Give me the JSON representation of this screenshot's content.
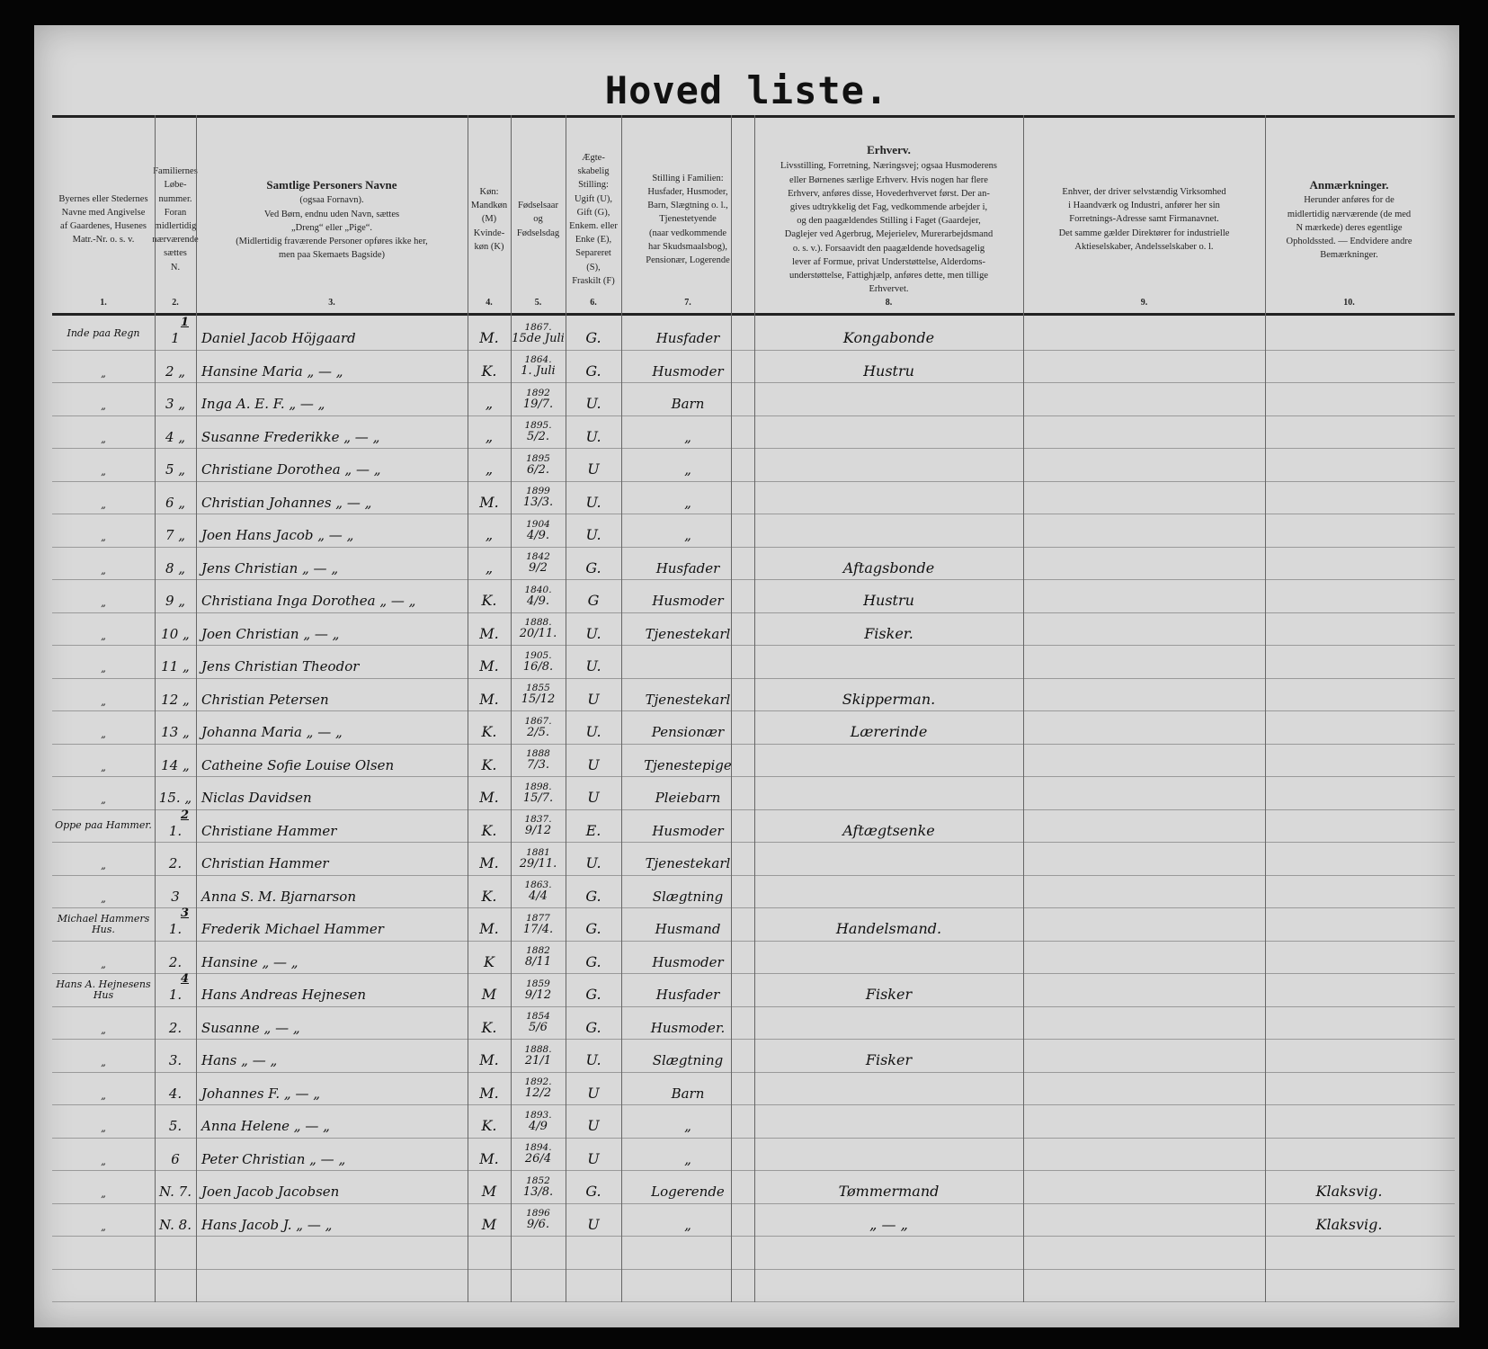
{
  "title": "Hoved liste.",
  "headers": [
    {
      "num": "1.",
      "lines": [
        "Byernes eller Stedernes",
        "Navne med Angivelse",
        "af Gaardenes, Husenes",
        "Matr.-Nr. o. s. v."
      ]
    },
    {
      "num": "2.",
      "lines": [
        "Familiernes",
        "Løbe-",
        "nummer.",
        "Foran",
        "midlertidig",
        "nærværende",
        "sættes N."
      ]
    },
    {
      "num": "3.",
      "title": "Samtlige Personers Navne",
      "lines": [
        "(ogsaa Fornavn).",
        "Ved Børn, endnu uden Navn, sættes",
        "„Dreng“ eller „Pige“.",
        "(Midlertidig fraværende Personer opføres ikke her,",
        "men paa Skemaets Bagside)"
      ]
    },
    {
      "num": "4.",
      "lines": [
        "Køn:",
        "Mandkøn",
        "(M)",
        "Kvinde-",
        "køn (K)"
      ]
    },
    {
      "num": "5.",
      "lines": [
        "Fødselsaar",
        "og",
        "Fødselsdag"
      ]
    },
    {
      "num": "6.",
      "lines": [
        "Ægte-",
        "skabelig",
        "Stilling:",
        "Ugift (U),",
        "Gift (G),",
        "Enkem. eller",
        "Enke (E),",
        "Separeret",
        "(S),",
        "Fraskilt (F)"
      ]
    },
    {
      "num": "7.",
      "lines": [
        "Stilling i Familien:",
        "Husfader, Husmoder,",
        "Barn, Slægtning o. l.,",
        "Tjenestetyende",
        "(naar vedkommende",
        "har Skudsmaalsbog),",
        "Pensionær, Logerende"
      ]
    },
    {
      "num": "8.",
      "title": "Erhverv.",
      "lines": [
        "Livsstilling, Forretning, Næringsvej; ogsaa Husmoderens",
        "eller Børnenes særlige Erhverv. Hvis nogen har flere",
        "Erhverv, anføres disse, Hovederhvervet først. Der an-",
        "gives udtrykkelig det Fag, vedkommende arbejder i,",
        "og den paagældendes Stilling i Faget (Gaardejer,",
        "Daglejer ved Agerbrug, Mejerielev, Murerarbejdsmand",
        "o. s. v.). Forsaavidt den paagældende hovedsagelig",
        "lever af Formue, privat Understøttelse, Alderdoms-",
        "understøttelse, Fattighjælp, anføres dette, men tillige",
        "Erhvervet."
      ]
    },
    {
      "num": "9.",
      "lines": [
        "Enhver, der driver selvstændig Virksomhed",
        "i Haandværk og Industri, anfører her sin",
        "Forretnings-Adresse samt Firmanavnet.",
        "Det samme gælder Direktører for industrielle",
        "Aktieselskaber, Andelsselskaber o. l."
      ]
    },
    {
      "num": "10.",
      "title": "Anmærkninger.",
      "lines": [
        "Herunder anføres for de",
        "midlertidig nærværende (de med",
        "N mærkede) deres egentlige",
        "Opholdssted. — Endvidere andre",
        "Bemærkninger."
      ]
    }
  ],
  "rows": [
    {
      "place": "Inde paa Regn",
      "family": "1",
      "no": "1",
      "name": "Daniel Jacob Höjgaard",
      "sex": "M.",
      "year": "1867.",
      "day": "15de Juli",
      "marital": "G.",
      "position": "Husfader",
      "occupation": "Kongabonde",
      "remarks": ""
    },
    {
      "place": "„",
      "family": "",
      "no": "2 „",
      "name": "Hansine Maria  „ — „",
      "sex": "K.",
      "year": "1864.",
      "day": "1. Juli",
      "marital": "G.",
      "position": "Husmoder",
      "occupation": "Hustru",
      "remarks": ""
    },
    {
      "place": "„",
      "family": "",
      "no": "3 „",
      "name": "Inga A. E. F.  „ — „",
      "sex": "„",
      "year": "1892",
      "day": "19/7.",
      "marital": "U.",
      "position": "Barn",
      "occupation": "",
      "remarks": ""
    },
    {
      "place": "„",
      "family": "",
      "no": "4 „",
      "name": "Susanne Frederikke  „ — „",
      "sex": "„",
      "year": "1895.",
      "day": "5/2.",
      "marital": "U.",
      "position": "„",
      "occupation": "",
      "remarks": ""
    },
    {
      "place": "„",
      "family": "",
      "no": "5 „",
      "name": "Christiane Dorothea  „ — „",
      "sex": "„",
      "year": "1895",
      "day": "6/2.",
      "marital": "U",
      "position": "„",
      "occupation": "",
      "remarks": ""
    },
    {
      "place": "„",
      "family": "",
      "no": "6 „",
      "name": "Christian Johannes  „ — „",
      "sex": "M.",
      "year": "1899",
      "day": "13/3.",
      "marital": "U.",
      "position": "„",
      "occupation": "",
      "remarks": ""
    },
    {
      "place": "„",
      "family": "",
      "no": "7 „",
      "name": "Joen Hans Jacob  „ — „",
      "sex": "„",
      "year": "1904",
      "day": "4/9.",
      "marital": "U.",
      "position": "„",
      "occupation": "",
      "remarks": ""
    },
    {
      "place": "„",
      "family": "",
      "no": "8 „",
      "name": "Jens Christian  „ — „",
      "sex": "„",
      "year": "1842",
      "day": "9/2",
      "marital": "G.",
      "position": "Husfader",
      "occupation": "Aftagsbonde",
      "remarks": ""
    },
    {
      "place": "„",
      "family": "",
      "no": "9 „",
      "name": "Christiana Inga Dorothea  „ — „",
      "sex": "K.",
      "year": "1840.",
      "day": "4/9.",
      "marital": "G",
      "position": "Husmoder",
      "occupation": "Hustru",
      "remarks": ""
    },
    {
      "place": "„",
      "family": "",
      "no": "10 „",
      "name": "Joen Christian  „ — „",
      "sex": "M.",
      "year": "1888.",
      "day": "20/11.",
      "marital": "U.",
      "position": "Tjenestekarl",
      "occupation": "Fisker.",
      "remarks": ""
    },
    {
      "place": "„",
      "family": "",
      "no": "11 „",
      "name": "Jens Christian Theodor",
      "sex": "M.",
      "year": "1905.",
      "day": "16/8.",
      "marital": "U.",
      "position": "",
      "occupation": "",
      "remarks": ""
    },
    {
      "place": "„",
      "family": "",
      "no": "12 „",
      "name": "Christian Petersen",
      "sex": "M.",
      "year": "1855",
      "day": "15/12",
      "marital": "U",
      "position": "Tjenestekarl",
      "occupation": "Skipperman.",
      "remarks": ""
    },
    {
      "place": "„",
      "family": "",
      "no": "13 „",
      "name": "Johanna Maria  „ — „",
      "sex": "K.",
      "year": "1867.",
      "day": "2/5.",
      "marital": "U.",
      "position": "Pensionær",
      "occupation": "Lærerinde",
      "remarks": ""
    },
    {
      "place": "„",
      "family": "",
      "no": "14 „",
      "name": "Catheine Sofie Louise Olsen",
      "sex": "K.",
      "year": "1888",
      "day": "7/3.",
      "marital": "U",
      "position": "Tjenestepige",
      "occupation": "",
      "remarks": ""
    },
    {
      "place": "„",
      "family": "",
      "no": "15. „",
      "name": "Niclas Davidsen",
      "sex": "M.",
      "year": "1898.",
      "day": "15/7.",
      "marital": "U",
      "position": "Pleiebarn",
      "occupation": "",
      "remarks": ""
    },
    {
      "place": "Oppe paa Hammer.",
      "family": "2",
      "no": "1.",
      "name": "Christiane  Hammer",
      "sex": "K.",
      "year": "1837.",
      "day": "9/12",
      "marital": "E.",
      "position": "Husmoder",
      "occupation": "Aftægtsenke",
      "remarks": ""
    },
    {
      "place": "„",
      "family": "",
      "no": "2.",
      "name": "Christian  Hammer",
      "sex": "M.",
      "year": "1881",
      "day": "29/11.",
      "marital": "U.",
      "position": "Tjenestekarl",
      "occupation": "",
      "remarks": ""
    },
    {
      "place": "„",
      "family": "",
      "no": "3",
      "name": "Anna S. M.  Bjarnarson",
      "sex": "K.",
      "year": "1863.",
      "day": "4/4",
      "marital": "G.",
      "position": "Slægtning",
      "occupation": "",
      "remarks": ""
    },
    {
      "place": "Michael Hammers Hus.",
      "family": "3",
      "no": "1.",
      "name": "Frederik Michael  Hammer",
      "sex": "M.",
      "year": "1877",
      "day": "17/4.",
      "marital": "G.",
      "position": "Husmand",
      "occupation": "Handelsmand.",
      "remarks": ""
    },
    {
      "place": "„",
      "family": "",
      "no": "2.",
      "name": "Hansine  „ — „",
      "sex": "K",
      "year": "1882",
      "day": "8/11",
      "marital": "G.",
      "position": "Husmoder",
      "occupation": "",
      "remarks": ""
    },
    {
      "place": "Hans A. Hejnesens Hus",
      "family": "4",
      "no": "1.",
      "name": "Hans Andreas Hejnesen",
      "sex": "M",
      "year": "1859",
      "day": "9/12",
      "marital": "G.",
      "position": "Husfader",
      "occupation": "Fisker",
      "remarks": ""
    },
    {
      "place": "„",
      "family": "",
      "no": "2.",
      "name": "Susanne  „ — „",
      "sex": "K.",
      "year": "1854",
      "day": "5/6",
      "marital": "G.",
      "position": "Husmoder.",
      "occupation": "",
      "remarks": ""
    },
    {
      "place": "„",
      "family": "",
      "no": "3.",
      "name": "Hans  „ — „",
      "sex": "M.",
      "year": "1888.",
      "day": "21/1",
      "marital": "U.",
      "position": "Slægtning",
      "occupation": "Fisker",
      "remarks": ""
    },
    {
      "place": "„",
      "family": "",
      "no": "4.",
      "name": "Johannes F.  „ — „",
      "sex": "M.",
      "year": "1892.",
      "day": "12/2",
      "marital": "U",
      "position": "Barn",
      "occupation": "",
      "remarks": ""
    },
    {
      "place": "„",
      "family": "",
      "no": "5.",
      "name": "Anna Helene  „ — „",
      "sex": "K.",
      "year": "1893.",
      "day": "4/9",
      "marital": "U",
      "position": "„",
      "occupation": "",
      "remarks": ""
    },
    {
      "place": "„",
      "family": "",
      "no": "6",
      "name": "Peter Christian  „ — „",
      "sex": "M.",
      "year": "1894.",
      "day": "26/4",
      "marital": "U",
      "position": "„",
      "occupation": "",
      "remarks": ""
    },
    {
      "place": "„",
      "family": "",
      "no": "N. 7.",
      "name": "Joen Jacob Jacobsen",
      "sex": "M",
      "year": "1852",
      "day": "13/8.",
      "marital": "G.",
      "position": "Logerende",
      "occupation": "Tømmermand",
      "remarks": "Klaksvig."
    },
    {
      "place": "„",
      "family": "",
      "no": "N. 8.",
      "name": "Hans Jacob J.  „ — „",
      "sex": "M",
      "year": "1896",
      "day": "9/6.",
      "marital": "U",
      "position": "„",
      "occupation": "„ — „",
      "remarks": "Klaksvig."
    }
  ]
}
